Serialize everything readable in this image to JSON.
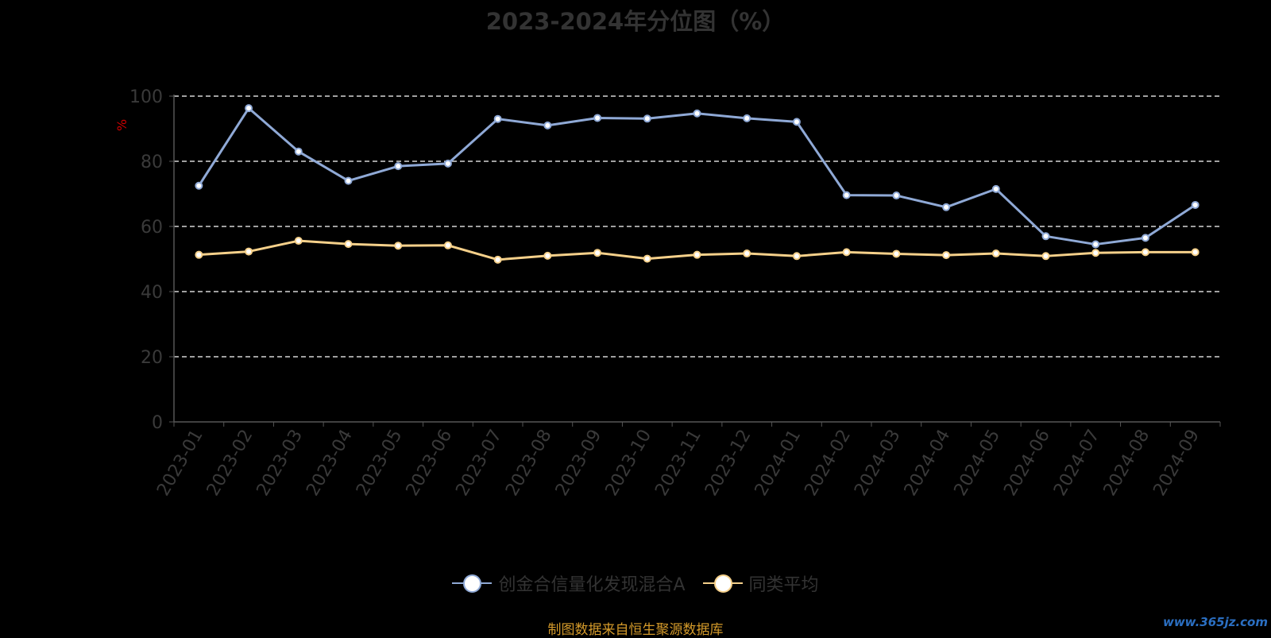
{
  "chart_data": {
    "type": "line",
    "title": "2023-2024年分位图（%）",
    "ylabel": "%",
    "xlabel": "",
    "ylim": [
      0,
      100
    ],
    "yticks": [
      0,
      20,
      40,
      60,
      80,
      100
    ],
    "grid": true,
    "legend_position": "bottom",
    "categories": [
      "2023-01",
      "2023-02",
      "2023-03",
      "2023-04",
      "2023-05",
      "2023-06",
      "2023-07",
      "2023-08",
      "2023-09",
      "2023-10",
      "2023-11",
      "2023-12",
      "2024-01",
      "2024-02",
      "2024-03",
      "2024-04",
      "2024-05",
      "2024-06",
      "2024-07",
      "2024-08",
      "2024-09"
    ],
    "series": [
      {
        "name": "创金合信量化发现混合A",
        "color": "#8fa9d6",
        "values": [
          72.5,
          96.3,
          83.0,
          74.0,
          78.5,
          79.3,
          93.0,
          91.0,
          93.3,
          93.1,
          94.7,
          93.2,
          92.1,
          69.6,
          69.5,
          65.9,
          71.5,
          57.0,
          54.5,
          56.5,
          66.6
        ]
      },
      {
        "name": "同类平均",
        "color": "#f5d08a",
        "values": [
          51.3,
          52.3,
          55.6,
          54.6,
          54.1,
          54.2,
          49.8,
          51.0,
          51.9,
          50.1,
          51.3,
          51.7,
          50.9,
          52.1,
          51.6,
          51.2,
          51.7,
          50.9,
          51.9,
          52.1,
          52.1
        ]
      }
    ]
  },
  "source_note": "制图数据来自恒生聚源数据库",
  "watermark": "www.365jz.com"
}
